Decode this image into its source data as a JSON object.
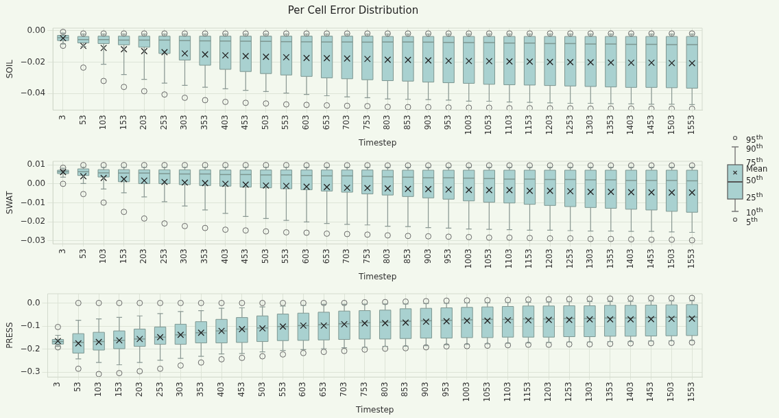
{
  "chart_data": [
    {
      "type": "box",
      "title": "Per Cell Error Distribution",
      "ylabel": "SOIL",
      "xlabel": "Timestep",
      "grid": true,
      "categories": [
        "3",
        "53",
        "103",
        "153",
        "203",
        "253",
        "303",
        "353",
        "403",
        "453",
        "503",
        "553",
        "603",
        "653",
        "703",
        "753",
        "803",
        "853",
        "903",
        "953",
        "1003",
        "1053",
        "1103",
        "1153",
        "1203",
        "1253",
        "1303",
        "1353",
        "1403",
        "1453",
        "1503",
        "1553"
      ],
      "ylim": [
        -0.0505,
        0.0016
      ],
      "yticks": [
        {
          "value": -0.04,
          "label": "−0.04"
        },
        {
          "value": -0.02,
          "label": "−0.02"
        },
        {
          "value": 0,
          "label": "0.00"
        }
      ],
      "series": [
        {
          "color": "#a9d1d0",
          "boxes": [
            {
              "low": -0.0085,
              "q1": -0.0063,
              "median": -0.0045,
              "q3": -0.003,
              "high": -0.0015,
              "mean": -0.0048,
              "outliers": [
                -0.0096,
                -0.0008
              ]
            },
            {
              "low": -0.01,
              "q1": -0.0078,
              "median": -0.0057,
              "q3": -0.0037,
              "high": -0.0022,
              "mean": -0.0097,
              "outliers": [
                -0.0235,
                -0.0018
              ]
            },
            {
              "low": -0.0214,
              "q1": -0.0082,
              "median": -0.0057,
              "q3": -0.0035,
              "high": -0.0022,
              "mean": -0.011,
              "outliers": [
                -0.032,
                -0.0018
              ]
            },
            {
              "low": -0.0279,
              "q1": -0.009,
              "median": -0.006,
              "q3": -0.0035,
              "high": -0.0022,
              "mean": -0.0118,
              "outliers": [
                -0.0358,
                -0.0018
              ]
            },
            {
              "low": -0.031,
              "q1": -0.0105,
              "median": -0.006,
              "q3": -0.0035,
              "high": -0.0022,
              "mean": -0.013,
              "outliers": [
                -0.0385,
                -0.0018
              ]
            },
            {
              "low": -0.0334,
              "q1": -0.0145,
              "median": -0.006,
              "q3": -0.0035,
              "high": -0.0022,
              "mean": -0.0137,
              "outliers": [
                -0.0406,
                -0.0018
              ]
            },
            {
              "low": -0.0348,
              "q1": -0.0187,
              "median": -0.0063,
              "q3": -0.0035,
              "high": -0.0022,
              "mean": -0.0145,
              "outliers": [
                -0.0427,
                -0.0018
              ]
            },
            {
              "low": -0.036,
              "q1": -0.022,
              "median": -0.0065,
              "q3": -0.0035,
              "high": -0.0022,
              "mean": -0.0151,
              "outliers": [
                -0.0442,
                -0.0018
              ]
            },
            {
              "low": -0.037,
              "q1": -0.0246,
              "median": -0.0066,
              "q3": -0.0035,
              "high": -0.0022,
              "mean": -0.0157,
              "outliers": [
                -0.0453,
                -0.0018
              ]
            },
            {
              "low": -0.038,
              "q1": -0.026,
              "median": -0.0067,
              "q3": -0.0035,
              "high": -0.0022,
              "mean": -0.0162,
              "outliers": [
                -0.0459,
                -0.0018
              ]
            },
            {
              "low": -0.0387,
              "q1": -0.0273,
              "median": -0.0068,
              "q3": -0.0035,
              "high": -0.0022,
              "mean": -0.0166,
              "outliers": [
                -0.0463,
                -0.0018
              ]
            },
            {
              "low": -0.0397,
              "q1": -0.0282,
              "median": -0.007,
              "q3": -0.0035,
              "high": -0.0022,
              "mean": -0.0169,
              "outliers": [
                -0.0469,
                -0.0018
              ]
            },
            {
              "low": -0.0406,
              "q1": -0.0291,
              "median": -0.0071,
              "q3": -0.0035,
              "high": -0.0022,
              "mean": -0.0174,
              "outliers": [
                -0.0472,
                -0.0018
              ]
            },
            {
              "low": -0.0414,
              "q1": -0.03,
              "median": -0.0072,
              "q3": -0.0035,
              "high": -0.0022,
              "mean": -0.0175,
              "outliers": [
                -0.0475,
                -0.0018
              ]
            },
            {
              "low": -0.0421,
              "q1": -0.0306,
              "median": -0.0072,
              "q3": -0.0035,
              "high": -0.0022,
              "mean": -0.0177,
              "outliers": [
                -0.0478,
                -0.0018
              ]
            },
            {
              "low": -0.0427,
              "q1": -0.0312,
              "median": -0.0073,
              "q3": -0.0035,
              "high": -0.0022,
              "mean": -0.018,
              "outliers": [
                -0.048,
                -0.0018
              ]
            },
            {
              "low": -0.0434,
              "q1": -0.0318,
              "median": -0.0072,
              "q3": -0.0037,
              "high": -0.0022,
              "mean": -0.0185,
              "outliers": [
                -0.0485,
                -0.0018
              ]
            },
            {
              "low": -0.0437,
              "q1": -0.0321,
              "median": -0.0072,
              "q3": -0.0037,
              "high": -0.0022,
              "mean": -0.0186,
              "outliers": [
                -0.0486,
                -0.0018
              ]
            },
            {
              "low": -0.0439,
              "q1": -0.0327,
              "median": -0.0073,
              "q3": -0.0037,
              "high": -0.0022,
              "mean": -0.0189,
              "outliers": [
                -0.0487,
                -0.0018
              ]
            },
            {
              "low": -0.0442,
              "q1": -0.0331,
              "median": -0.0075,
              "q3": -0.0037,
              "high": -0.0022,
              "mean": -0.0192,
              "outliers": [
                -0.0489,
                -0.0018
              ]
            },
            {
              "low": -0.0448,
              "q1": -0.0335,
              "median": -0.0076,
              "q3": -0.0037,
              "high": -0.0022,
              "mean": -0.0193,
              "outliers": [
                -0.049,
                -0.0018
              ]
            },
            {
              "low": -0.0449,
              "q1": -0.0341,
              "median": -0.0076,
              "q3": -0.0037,
              "high": -0.0022,
              "mean": -0.0194,
              "outliers": [
                -0.049,
                -0.0018
              ]
            },
            {
              "low": -0.0454,
              "q1": -0.0344,
              "median": -0.0079,
              "q3": -0.0037,
              "high": -0.0022,
              "mean": -0.0196,
              "outliers": [
                -0.0493,
                -0.0018
              ]
            },
            {
              "low": -0.0456,
              "q1": -0.0346,
              "median": -0.0079,
              "q3": -0.0037,
              "high": -0.0022,
              "mean": -0.0197,
              "outliers": [
                -0.0493,
                -0.0018
              ]
            },
            {
              "low": -0.0459,
              "q1": -0.0349,
              "median": -0.0082,
              "q3": -0.0037,
              "high": -0.0022,
              "mean": -0.0199,
              "outliers": [
                -0.0494,
                -0.0018
              ]
            },
            {
              "low": -0.0462,
              "q1": -0.0352,
              "median": -0.0082,
              "q3": -0.0037,
              "high": -0.0022,
              "mean": -0.02,
              "outliers": [
                -0.0494,
                -0.0018
              ]
            },
            {
              "low": -0.0462,
              "q1": -0.0355,
              "median": -0.0085,
              "q3": -0.0037,
              "high": -0.0022,
              "mean": -0.0201,
              "outliers": [
                -0.0496,
                -0.0018
              ]
            },
            {
              "low": -0.0465,
              "q1": -0.0358,
              "median": -0.0085,
              "q3": -0.0037,
              "high": -0.0022,
              "mean": -0.0203,
              "outliers": [
                -0.0496,
                -0.0018
              ]
            },
            {
              "low": -0.0466,
              "q1": -0.0361,
              "median": -0.0087,
              "q3": -0.0037,
              "high": -0.0022,
              "mean": -0.0204,
              "outliers": [
                -0.0496,
                -0.0018
              ]
            },
            {
              "low": -0.0468,
              "q1": -0.0361,
              "median": -0.0087,
              "q3": -0.0037,
              "high": -0.0022,
              "mean": -0.0204,
              "outliers": [
                -0.0497,
                -0.0018
              ]
            },
            {
              "low": -0.0468,
              "q1": -0.0363,
              "median": -0.0089,
              "q3": -0.0037,
              "high": -0.0022,
              "mean": -0.0206,
              "outliers": [
                -0.0497,
                -0.0018
              ]
            },
            {
              "low": -0.047,
              "q1": -0.0366,
              "median": -0.0089,
              "q3": -0.0037,
              "high": -0.0022,
              "mean": -0.0207,
              "outliers": [
                -0.0497,
                -0.0018
              ]
            }
          ]
        }
      ]
    },
    {
      "type": "box",
      "ylabel": "SWAT",
      "xlabel": "Timestep",
      "grid": true,
      "categories": [
        "3",
        "53",
        "103",
        "153",
        "203",
        "253",
        "303",
        "353",
        "403",
        "453",
        "503",
        "553",
        "603",
        "653",
        "703",
        "753",
        "803",
        "853",
        "903",
        "953",
        "1003",
        "1053",
        "1103",
        "1153",
        "1203",
        "1253",
        "1303",
        "1353",
        "1403",
        "1453",
        "1503",
        "1553"
      ],
      "ylim": [
        -0.0317,
        0.0119
      ],
      "yticks": [
        {
          "value": -0.03,
          "label": "−0.03"
        },
        {
          "value": -0.02,
          "label": "−0.02"
        },
        {
          "value": -0.01,
          "label": "−0.01"
        },
        {
          "value": 0,
          "label": "0.00"
        },
        {
          "value": 0.01,
          "label": "0.01"
        }
      ],
      "series": [
        {
          "color": "#a9d1d0",
          "boxes": [
            {
              "low": 0.0035,
              "q1": 0.0054,
              "median": 0.0064,
              "q3": 0.0072,
              "high": 0.0082,
              "mean": 0.0062,
              "outliers": [
                0.0,
                0.0085
              ]
            },
            {
              "low": 0.0002,
              "q1": 0.0044,
              "median": 0.0064,
              "q3": 0.0079,
              "high": 0.0088,
              "mean": 0.004,
              "outliers": [
                -0.0054,
                0.0099
              ]
            },
            {
              "low": -0.0027,
              "q1": 0.0036,
              "median": 0.0058,
              "q3": 0.0075,
              "high": 0.0088,
              "mean": 0.0031,
              "outliers": [
                -0.0099,
                0.0099
              ]
            },
            {
              "low": -0.0047,
              "q1": 0.0011,
              "median": 0.0057,
              "q3": 0.0075,
              "high": 0.0088,
              "mean": 0.0025,
              "outliers": [
                -0.0148,
                0.0099
              ]
            },
            {
              "low": -0.0069,
              "q1": 0.0001,
              "median": 0.0057,
              "q3": 0.0074,
              "high": 0.0088,
              "mean": 0.0017,
              "outliers": [
                -0.0183,
                0.0099
              ]
            },
            {
              "low": -0.0094,
              "q1": 0.0001,
              "median": 0.0054,
              "q3": 0.0074,
              "high": 0.0088,
              "mean": 0.001,
              "outliers": [
                -0.0209,
                0.0099
              ]
            },
            {
              "low": -0.0117,
              "q1": -0.0004,
              "median": 0.0052,
              "q3": 0.0074,
              "high": 0.0088,
              "mean": 0.0007,
              "outliers": [
                -0.0223,
                0.0099
              ]
            },
            {
              "low": -0.0138,
              "q1": -0.0009,
              "median": 0.0052,
              "q3": 0.0074,
              "high": 0.0088,
              "mean": 0.0004,
              "outliers": [
                -0.0233,
                0.0099
              ]
            },
            {
              "low": -0.0156,
              "q1": -0.0012,
              "median": 0.0049,
              "q3": 0.0073,
              "high": 0.0088,
              "mean": 0.0,
              "outliers": [
                -0.0242,
                0.0099
              ]
            },
            {
              "low": -0.0172,
              "q1": -0.0017,
              "median": 0.0049,
              "q3": 0.0073,
              "high": 0.0088,
              "mean": -0.0004,
              "outliers": [
                -0.0246,
                0.0099
              ]
            },
            {
              "low": -0.0183,
              "q1": -0.0021,
              "median": 0.0047,
              "q3": 0.0073,
              "high": 0.0088,
              "mean": -0.0009,
              "outliers": [
                -0.0251,
                0.0099
              ]
            },
            {
              "low": -0.0193,
              "q1": -0.0026,
              "median": 0.0047,
              "q3": 0.0073,
              "high": 0.0088,
              "mean": -0.0011,
              "outliers": [
                -0.0256,
                0.0099
              ]
            },
            {
              "low": -0.0201,
              "q1": -0.0031,
              "median": 0.0044,
              "q3": 0.0073,
              "high": 0.0088,
              "mean": -0.0015,
              "outliers": [
                -0.0258,
                0.0098
              ]
            },
            {
              "low": -0.0209,
              "q1": -0.0038,
              "median": 0.0042,
              "q3": 0.0073,
              "high": 0.0088,
              "mean": -0.0017,
              "outliers": [
                -0.0263,
                0.0098
              ]
            },
            {
              "low": -0.0214,
              "q1": -0.0044,
              "median": 0.0042,
              "q3": 0.0073,
              "high": 0.0088,
              "mean": -0.0021,
              "outliers": [
                -0.0265,
                0.0098
              ]
            },
            {
              "low": -0.0217,
              "q1": -0.0053,
              "median": 0.004,
              "q3": 0.0073,
              "high": 0.0088,
              "mean": -0.0022,
              "outliers": [
                -0.0268,
                0.0098
              ]
            },
            {
              "low": -0.0224,
              "q1": -0.0059,
              "median": 0.0037,
              "q3": 0.0072,
              "high": 0.0088,
              "mean": -0.0024,
              "outliers": [
                -0.0272,
                0.0097
              ]
            },
            {
              "low": -0.0226,
              "q1": -0.0067,
              "median": 0.0035,
              "q3": 0.0072,
              "high": 0.0088,
              "mean": -0.0027,
              "outliers": [
                -0.0275,
                0.0097
              ]
            },
            {
              "low": -0.0231,
              "q1": -0.0074,
              "median": 0.0032,
              "q3": 0.0072,
              "high": 0.0088,
              "mean": -0.0028,
              "outliers": [
                -0.0277,
                0.0097
              ]
            },
            {
              "low": -0.0234,
              "q1": -0.0081,
              "median": 0.0032,
              "q3": 0.0072,
              "high": 0.0088,
              "mean": -0.003,
              "outliers": [
                -0.0279,
                0.0097
              ]
            },
            {
              "low": -0.0238,
              "q1": -0.009,
              "median": 0.003,
              "q3": 0.0072,
              "high": 0.0088,
              "mean": -0.0032,
              "outliers": [
                -0.0281,
                0.0097
              ]
            },
            {
              "low": -0.024,
              "q1": -0.0097,
              "median": 0.0028,
              "q3": 0.0072,
              "high": 0.0088,
              "mean": -0.0033,
              "outliers": [
                -0.0284,
                0.0097
              ]
            },
            {
              "low": -0.0242,
              "q1": -0.0101,
              "median": 0.0025,
              "q3": 0.0072,
              "high": 0.0088,
              "mean": -0.0033,
              "outliers": [
                -0.0284,
                0.0097
              ]
            },
            {
              "low": -0.0245,
              "q1": -0.0108,
              "median": 0.0025,
              "q3": 0.0072,
              "high": 0.0088,
              "mean": -0.0037,
              "outliers": [
                -0.0286,
                0.0097
              ]
            },
            {
              "low": -0.0245,
              "q1": -0.0114,
              "median": 0.0023,
              "q3": 0.0072,
              "high": 0.0088,
              "mean": -0.0037,
              "outliers": [
                -0.0288,
                0.0097
              ]
            },
            {
              "low": -0.0247,
              "q1": -0.012,
              "median": 0.0023,
              "q3": 0.0072,
              "high": 0.0088,
              "mean": -0.0039,
              "outliers": [
                -0.0288,
                0.0097
              ]
            },
            {
              "low": -0.0249,
              "q1": -0.0125,
              "median": 0.0021,
              "q3": 0.0072,
              "high": 0.0088,
              "mean": -0.0042,
              "outliers": [
                -0.0291,
                0.0097
              ]
            },
            {
              "low": -0.0249,
              "q1": -0.0129,
              "median": 0.0021,
              "q3": 0.0072,
              "high": 0.0088,
              "mean": -0.0042,
              "outliers": [
                -0.0291,
                0.0097
              ]
            },
            {
              "low": -0.0251,
              "q1": -0.0134,
              "median": 0.0018,
              "q3": 0.0072,
              "high": 0.0088,
              "mean": -0.0044,
              "outliers": [
                -0.0293,
                0.0097
              ]
            },
            {
              "low": -0.0251,
              "q1": -0.0138,
              "median": 0.0018,
              "q3": 0.0072,
              "high": 0.0088,
              "mean": -0.0045,
              "outliers": [
                -0.0295,
                0.0097
              ]
            },
            {
              "low": -0.0254,
              "q1": -0.0145,
              "median": 0.0018,
              "q3": 0.0072,
              "high": 0.0088,
              "mean": -0.0046,
              "outliers": [
                -0.0295,
                0.0097
              ]
            },
            {
              "low": -0.0256,
              "q1": -0.015,
              "median": 0.0016,
              "q3": 0.0072,
              "high": 0.0088,
              "mean": -0.0046,
              "outliers": [
                -0.0298,
                0.0097
              ]
            }
          ]
        }
      ]
    },
    {
      "type": "box",
      "ylabel": "PRESS",
      "xlabel": "Timestep",
      "grid": true,
      "categories": [
        "3",
        "53",
        "103",
        "153",
        "203",
        "253",
        "303",
        "353",
        "403",
        "453",
        "503",
        "553",
        "603",
        "653",
        "703",
        "753",
        "803",
        "853",
        "903",
        "953",
        "1003",
        "1053",
        "1103",
        "1153",
        "1203",
        "1253",
        "1303",
        "1353",
        "1403",
        "1453",
        "1503",
        "1553"
      ],
      "ylim": [
        -0.321,
        0.04
      ],
      "yticks": [
        {
          "value": -0.3,
          "label": "−0.3"
        },
        {
          "value": -0.2,
          "label": "−0.2"
        },
        {
          "value": -0.1,
          "label": "−0.1"
        },
        {
          "value": 0,
          "label": "0.0"
        }
      ],
      "series": [
        {
          "color": "#a9d1d0",
          "boxes": [
            {
              "low": -0.188,
              "q1": -0.178,
              "median": -0.167,
              "q3": -0.158,
              "high": -0.14,
              "mean": -0.165,
              "outliers": [
                -0.192,
                -0.104
              ]
            },
            {
              "low": -0.242,
              "q1": -0.217,
              "median": -0.171,
              "q3": -0.133,
              "high": -0.075,
              "mean": -0.175,
              "outliers": [
                -0.285,
                0.0
              ]
            },
            {
              "low": -0.258,
              "q1": -0.204,
              "median": -0.167,
              "q3": -0.127,
              "high": -0.069,
              "mean": -0.169,
              "outliers": [
                -0.308,
                0.0
              ]
            },
            {
              "low": -0.268,
              "q1": -0.198,
              "median": -0.162,
              "q3": -0.121,
              "high": -0.062,
              "mean": -0.162,
              "outliers": [
                -0.304,
                0.0
              ]
            },
            {
              "low": -0.258,
              "q1": -0.188,
              "median": -0.156,
              "q3": -0.113,
              "high": -0.056,
              "mean": -0.156,
              "outliers": [
                -0.296,
                0.0
              ]
            },
            {
              "low": -0.248,
              "q1": -0.179,
              "median": -0.148,
              "q3": -0.104,
              "high": -0.046,
              "mean": -0.148,
              "outliers": [
                -0.285,
                0.0
              ]
            },
            {
              "low": -0.24,
              "q1": -0.179,
              "median": -0.138,
              "q3": -0.092,
              "high": -0.037,
              "mean": -0.138,
              "outliers": [
                -0.271,
                0.0
              ]
            },
            {
              "low": -0.231,
              "q1": -0.173,
              "median": -0.129,
              "q3": -0.081,
              "high": -0.033,
              "mean": -0.129,
              "outliers": [
                -0.258,
                0.0
              ]
            },
            {
              "low": -0.221,
              "q1": -0.173,
              "median": -0.121,
              "q3": -0.071,
              "high": -0.023,
              "mean": -0.121,
              "outliers": [
                -0.244,
                0.0
              ]
            },
            {
              "low": -0.219,
              "q1": -0.171,
              "median": -0.113,
              "q3": -0.063,
              "high": -0.021,
              "mean": -0.113,
              "outliers": [
                -0.238,
                0.0
              ]
            },
            {
              "low": -0.212,
              "q1": -0.167,
              "median": -0.108,
              "q3": -0.056,
              "high": -0.017,
              "mean": -0.11,
              "outliers": [
                -0.231,
                0.0
              ]
            },
            {
              "low": -0.206,
              "q1": -0.163,
              "median": -0.102,
              "q3": -0.048,
              "high": -0.013,
              "mean": -0.102,
              "outliers": [
                -0.223,
                0.0
              ]
            },
            {
              "low": -0.202,
              "q1": -0.162,
              "median": -0.098,
              "q3": -0.044,
              "high": -0.01,
              "mean": -0.098,
              "outliers": [
                -0.217,
                0.0
              ]
            },
            {
              "low": -0.198,
              "q1": -0.16,
              "median": -0.094,
              "q3": -0.04,
              "high": -0.006,
              "mean": -0.098,
              "outliers": [
                -0.212,
                0.0
              ]
            },
            {
              "low": -0.194,
              "q1": -0.158,
              "median": -0.09,
              "q3": -0.035,
              "high": -0.006,
              "mean": -0.092,
              "outliers": [
                -0.208,
                0.0
              ]
            },
            {
              "low": -0.192,
              "q1": -0.156,
              "median": -0.085,
              "q3": -0.033,
              "high": -0.005,
              "mean": -0.088,
              "outliers": [
                -0.202,
                0.003
              ]
            },
            {
              "low": -0.188,
              "q1": -0.156,
              "median": -0.083,
              "q3": -0.031,
              "high": -0.004,
              "mean": -0.087,
              "outliers": [
                -0.198,
                0.004
              ]
            },
            {
              "low": -0.187,
              "q1": -0.154,
              "median": -0.079,
              "q3": -0.025,
              "high": -0.004,
              "mean": -0.085,
              "outliers": [
                -0.196,
                0.006
              ]
            },
            {
              "low": -0.185,
              "q1": -0.152,
              "median": -0.077,
              "q3": -0.023,
              "high": -0.002,
              "mean": -0.081,
              "outliers": [
                -0.192,
                0.008
              ]
            },
            {
              "low": -0.181,
              "q1": -0.152,
              "median": -0.075,
              "q3": -0.021,
              "high": -0.001,
              "mean": -0.079,
              "outliers": [
                -0.188,
                0.01
              ]
            },
            {
              "low": -0.179,
              "q1": -0.15,
              "median": -0.073,
              "q3": -0.019,
              "high": 0.0,
              "mean": -0.077,
              "outliers": [
                -0.187,
                0.011
              ]
            },
            {
              "low": -0.177,
              "q1": -0.15,
              "median": -0.071,
              "q3": -0.017,
              "high": 0.001,
              "mean": -0.077,
              "outliers": [
                -0.185,
                0.012
              ]
            },
            {
              "low": -0.175,
              "q1": -0.148,
              "median": -0.071,
              "q3": -0.015,
              "high": 0.002,
              "mean": -0.075,
              "outliers": [
                -0.183,
                0.013
              ]
            },
            {
              "low": -0.173,
              "q1": -0.148,
              "median": -0.069,
              "q3": -0.013,
              "high": 0.003,
              "mean": -0.075,
              "outliers": [
                -0.181,
                0.015
              ]
            },
            {
              "low": -0.171,
              "q1": -0.148,
              "median": -0.069,
              "q3": -0.013,
              "high": 0.004,
              "mean": -0.073,
              "outliers": [
                -0.181,
                0.016
              ]
            },
            {
              "low": -0.169,
              "q1": -0.146,
              "median": -0.067,
              "q3": -0.012,
              "high": 0.005,
              "mean": -0.073,
              "outliers": [
                -0.179,
                0.017
              ]
            },
            {
              "low": -0.169,
              "q1": -0.146,
              "median": -0.067,
              "q3": -0.012,
              "high": 0.006,
              "mean": -0.071,
              "outliers": [
                -0.179,
                0.018
              ]
            },
            {
              "low": -0.167,
              "q1": -0.144,
              "median": -0.065,
              "q3": -0.01,
              "high": 0.006,
              "mean": -0.071,
              "outliers": [
                -0.177,
                0.019
              ]
            },
            {
              "low": -0.167,
              "q1": -0.144,
              "median": -0.065,
              "q3": -0.01,
              "high": 0.007,
              "mean": -0.071,
              "outliers": [
                -0.175,
                0.02
              ]
            },
            {
              "low": -0.165,
              "q1": -0.143,
              "median": -0.063,
              "q3": -0.009,
              "high": 0.008,
              "mean": -0.07,
              "outliers": [
                -0.174,
                0.021
              ]
            },
            {
              "low": -0.164,
              "q1": -0.142,
              "median": -0.062,
              "q3": -0.008,
              "high": 0.008,
              "mean": -0.069,
              "outliers": [
                -0.173,
                0.021
              ]
            },
            {
              "low": -0.163,
              "q1": -0.141,
              "median": -0.061,
              "q3": -0.007,
              "high": 0.009,
              "mean": -0.068,
              "outliers": [
                -0.171,
                0.022
              ]
            }
          ]
        }
      ]
    },
    {
      "type": "other",
      "annotations": [
        "95$^{th}$",
        "90$^{th}$",
        "75$^{th}$",
        "Mean",
        "50$^{th}$",
        "25$^{th}$",
        "10$^{th}$",
        "5$^{th}$"
      ]
    }
  ]
}
